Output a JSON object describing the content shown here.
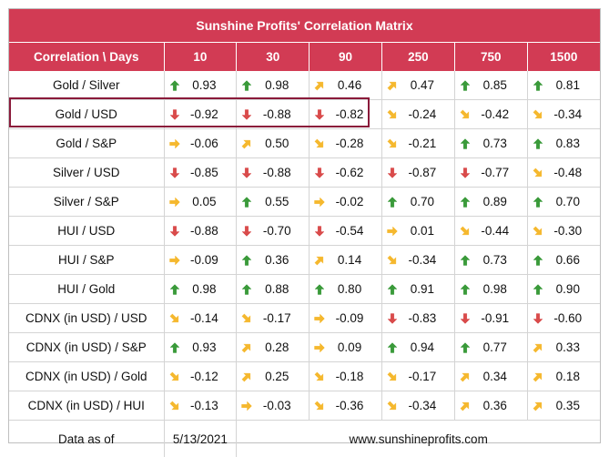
{
  "title": "Sunshine Profits' Correlation Matrix",
  "header": [
    "Correlation \\ Days",
    "10",
    "30",
    "90",
    "250",
    "750",
    "1500"
  ],
  "colors": {
    "header_bg": "#d23b54",
    "up": "#3a9a3a",
    "down": "#d94b4b",
    "flat": "#f5b82e",
    "highlight": "#8a1a3a"
  },
  "rows": [
    {
      "label": "Gold / Silver",
      "cells": [
        {
          "v": "0.93",
          "i": "up-arrow-icon"
        },
        {
          "v": "0.98",
          "i": "up-arrow-icon"
        },
        {
          "v": "0.46",
          "i": "up-right-arrow-icon"
        },
        {
          "v": "0.47",
          "i": "up-right-arrow-icon"
        },
        {
          "v": "0.85",
          "i": "up-arrow-icon"
        },
        {
          "v": "0.81",
          "i": "up-arrow-icon"
        }
      ]
    },
    {
      "label": "Gold / USD",
      "cells": [
        {
          "v": "-0.92",
          "i": "down-arrow-icon"
        },
        {
          "v": "-0.88",
          "i": "down-arrow-icon"
        },
        {
          "v": "-0.82",
          "i": "down-arrow-icon"
        },
        {
          "v": "-0.24",
          "i": "down-right-arrow-icon"
        },
        {
          "v": "-0.42",
          "i": "down-right-arrow-icon"
        },
        {
          "v": "-0.34",
          "i": "down-right-arrow-icon"
        }
      ]
    },
    {
      "label": "Gold / S&P",
      "cells": [
        {
          "v": "-0.06",
          "i": "right-arrow-icon"
        },
        {
          "v": "0.50",
          "i": "up-right-arrow-icon"
        },
        {
          "v": "-0.28",
          "i": "down-right-arrow-icon"
        },
        {
          "v": "-0.21",
          "i": "down-right-arrow-icon"
        },
        {
          "v": "0.73",
          "i": "up-arrow-icon"
        },
        {
          "v": "0.83",
          "i": "up-arrow-icon"
        }
      ]
    },
    {
      "label": "Silver / USD",
      "cells": [
        {
          "v": "-0.85",
          "i": "down-arrow-icon"
        },
        {
          "v": "-0.88",
          "i": "down-arrow-icon"
        },
        {
          "v": "-0.62",
          "i": "down-arrow-icon"
        },
        {
          "v": "-0.87",
          "i": "down-arrow-icon"
        },
        {
          "v": "-0.77",
          "i": "down-arrow-icon"
        },
        {
          "v": "-0.48",
          "i": "down-right-arrow-icon"
        }
      ]
    },
    {
      "label": "Silver / S&P",
      "cells": [
        {
          "v": "0.05",
          "i": "right-arrow-icon"
        },
        {
          "v": "0.55",
          "i": "up-arrow-icon"
        },
        {
          "v": "-0.02",
          "i": "right-arrow-icon"
        },
        {
          "v": "0.70",
          "i": "up-arrow-icon"
        },
        {
          "v": "0.89",
          "i": "up-arrow-icon"
        },
        {
          "v": "0.70",
          "i": "up-arrow-icon"
        }
      ]
    },
    {
      "label": "HUI / USD",
      "cells": [
        {
          "v": "-0.88",
          "i": "down-arrow-icon"
        },
        {
          "v": "-0.70",
          "i": "down-arrow-icon"
        },
        {
          "v": "-0.54",
          "i": "down-arrow-icon"
        },
        {
          "v": "0.01",
          "i": "right-arrow-icon"
        },
        {
          "v": "-0.44",
          "i": "down-right-arrow-icon"
        },
        {
          "v": "-0.30",
          "i": "down-right-arrow-icon"
        }
      ]
    },
    {
      "label": "HUI / S&P",
      "cells": [
        {
          "v": "-0.09",
          "i": "right-arrow-icon"
        },
        {
          "v": "0.36",
          "i": "up-arrow-icon"
        },
        {
          "v": "0.14",
          "i": "up-right-arrow-icon"
        },
        {
          "v": "-0.34",
          "i": "down-right-arrow-icon"
        },
        {
          "v": "0.73",
          "i": "up-arrow-icon"
        },
        {
          "v": "0.66",
          "i": "up-arrow-icon"
        }
      ]
    },
    {
      "label": "HUI / Gold",
      "cells": [
        {
          "v": "0.98",
          "i": "up-arrow-icon"
        },
        {
          "v": "0.88",
          "i": "up-arrow-icon"
        },
        {
          "v": "0.80",
          "i": "up-arrow-icon"
        },
        {
          "v": "0.91",
          "i": "up-arrow-icon"
        },
        {
          "v": "0.98",
          "i": "up-arrow-icon"
        },
        {
          "v": "0.90",
          "i": "up-arrow-icon"
        }
      ]
    },
    {
      "label": "CDNX (in USD) / USD",
      "cells": [
        {
          "v": "-0.14",
          "i": "down-right-arrow-icon"
        },
        {
          "v": "-0.17",
          "i": "down-right-arrow-icon"
        },
        {
          "v": "-0.09",
          "i": "right-arrow-icon"
        },
        {
          "v": "-0.83",
          "i": "down-arrow-icon"
        },
        {
          "v": "-0.91",
          "i": "down-arrow-icon"
        },
        {
          "v": "-0.60",
          "i": "down-arrow-icon"
        }
      ]
    },
    {
      "label": "CDNX (in USD) / S&P",
      "cells": [
        {
          "v": "0.93",
          "i": "up-arrow-icon"
        },
        {
          "v": "0.28",
          "i": "up-right-arrow-icon"
        },
        {
          "v": "0.09",
          "i": "right-arrow-icon"
        },
        {
          "v": "0.94",
          "i": "up-arrow-icon"
        },
        {
          "v": "0.77",
          "i": "up-arrow-icon"
        },
        {
          "v": "0.33",
          "i": "up-right-arrow-icon"
        }
      ]
    },
    {
      "label": "CDNX (in USD) / Gold",
      "cells": [
        {
          "v": "-0.12",
          "i": "down-right-arrow-icon"
        },
        {
          "v": "0.25",
          "i": "up-right-arrow-icon"
        },
        {
          "v": "-0.18",
          "i": "down-right-arrow-icon"
        },
        {
          "v": "-0.17",
          "i": "down-right-arrow-icon"
        },
        {
          "v": "0.34",
          "i": "up-right-arrow-icon"
        },
        {
          "v": "0.18",
          "i": "up-right-arrow-icon"
        }
      ]
    },
    {
      "label": "CDNX (in USD) / HUI",
      "cells": [
        {
          "v": "-0.13",
          "i": "down-right-arrow-icon"
        },
        {
          "v": "-0.03",
          "i": "right-arrow-icon"
        },
        {
          "v": "-0.36",
          "i": "down-right-arrow-icon"
        },
        {
          "v": "-0.34",
          "i": "down-right-arrow-icon"
        },
        {
          "v": "0.36",
          "i": "up-right-arrow-icon"
        },
        {
          "v": "0.35",
          "i": "up-right-arrow-icon"
        }
      ]
    }
  ],
  "footer": {
    "label": "Data as of",
    "date": "5/13/2021",
    "site": "www.sunshineprofits.com"
  }
}
